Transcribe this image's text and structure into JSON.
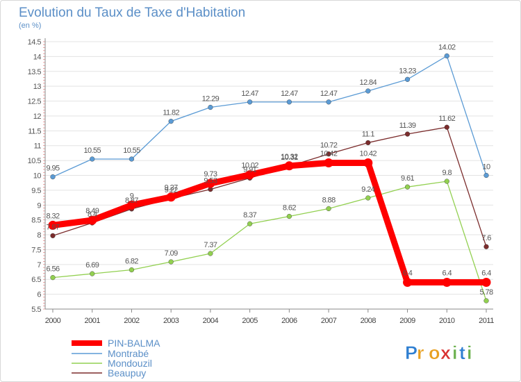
{
  "chart_data": {
    "type": "line",
    "title": "Evolution du Taux de Taxe d'Habitation",
    "subtitle": "(en %)",
    "xlabel": "",
    "ylabel": "",
    "categories": [
      "2000",
      "2001",
      "2002",
      "2003",
      "2004",
      "2005",
      "2006",
      "2007",
      "2008",
      "2009",
      "2010",
      "2011"
    ],
    "ylim": [
      5.5,
      14.5
    ],
    "yticks": [
      "5.5",
      "6",
      "6.5",
      "7",
      "7.5",
      "8",
      "8.5",
      "9",
      "9.5",
      "10",
      "10.5",
      "11",
      "11.5",
      "12",
      "12.5",
      "13",
      "13.5",
      "14",
      "14.5"
    ],
    "grid": "horizontal",
    "legend_position": "bottom-left",
    "series": [
      {
        "name": "PIN-BALMA",
        "color": "#ff0000",
        "values": [
          8.32,
          8.49,
          9,
          9.27,
          9.73,
          10.02,
          10.32,
          10.42,
          10.42,
          6.4,
          6.4,
          6.4
        ],
        "labels": [
          "8.32",
          "8.49",
          "9",
          "9.27",
          "9.73",
          "10.02",
          "10.32",
          "10.42",
          "10.42",
          "6.4",
          "6.4",
          "6.4"
        ]
      },
      {
        "name": "Montrabé",
        "color": "#5b9bd5",
        "values": [
          9.95,
          10.55,
          10.55,
          11.82,
          12.29,
          12.47,
          12.47,
          12.47,
          12.84,
          13.23,
          14.02,
          10
        ],
        "labels": [
          "9.95",
          "10.55",
          "10.55",
          "11.82",
          "12.29",
          "12.47",
          "12.47",
          "12.47",
          "12.84",
          "13.23",
          "14.02",
          "10"
        ]
      },
      {
        "name": "Mondouzil",
        "color": "#92d050",
        "values": [
          6.56,
          6.69,
          6.82,
          7.09,
          7.37,
          8.37,
          8.62,
          8.88,
          9.24,
          9.61,
          9.8,
          5.78
        ],
        "labels": [
          "6.56",
          "6.69",
          "6.82",
          "7.09",
          "7.37",
          "8.37",
          "8.62",
          "8.88",
          "9.24",
          "9.61",
          "9.8",
          "5.78"
        ]
      },
      {
        "name": "Beaupuy",
        "color": "#7b2c2c",
        "values": [
          7.97,
          8.4,
          8.87,
          9.22,
          9.53,
          9.91,
          10.31,
          10.72,
          11.1,
          11.39,
          11.62,
          7.6
        ],
        "labels": [
          "7.97",
          "8.4",
          "8.87",
          "9.22",
          "9.53",
          "9.91",
          "10.31",
          "10.72",
          "11.1",
          "11.39",
          "11.62",
          "7.6"
        ]
      }
    ]
  },
  "logo": {
    "text": "Proxiti"
  }
}
